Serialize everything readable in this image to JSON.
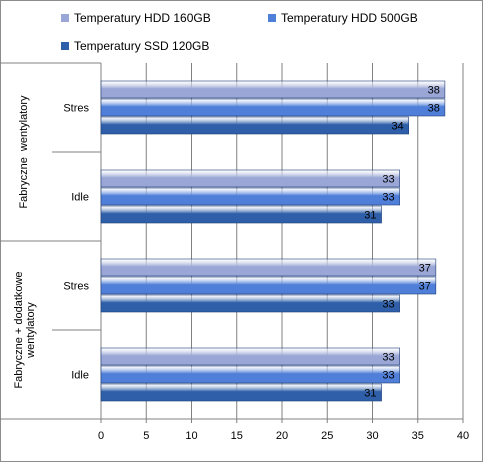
{
  "chart_data": {
    "type": "bar",
    "orientation": "horizontal",
    "groups": [
      {
        "label": "Fabryczne  wentylatory",
        "categories": [
          "Stres",
          "Idle"
        ]
      },
      {
        "label": "Fabryczne + dodatkowe wentylatory",
        "label_lines": [
          "Fabryczne + dodatkowe",
          "wentylatory"
        ],
        "categories": [
          "Stres",
          "Idle"
        ]
      }
    ],
    "categories": [
      "Stres",
      "Idle",
      "Stres",
      "Idle"
    ],
    "series": [
      {
        "name": "Temperatury HDD 160GB",
        "color": "#9aa6d6",
        "values": [
          38,
          33,
          37,
          33
        ]
      },
      {
        "name": "Temperatury HDD 500GB",
        "color": "#4f7fd8",
        "values": [
          38,
          33,
          37,
          33
        ]
      },
      {
        "name": "Temperatury SSD 120GB",
        "color": "#2e5fa8",
        "values": [
          34,
          31,
          33,
          31
        ]
      }
    ],
    "xlim": [
      0,
      40
    ],
    "xticks": [
      0,
      5,
      10,
      15,
      20,
      25,
      30,
      35,
      40
    ],
    "grid": true,
    "legend_position": "top",
    "data_labels": true
  }
}
